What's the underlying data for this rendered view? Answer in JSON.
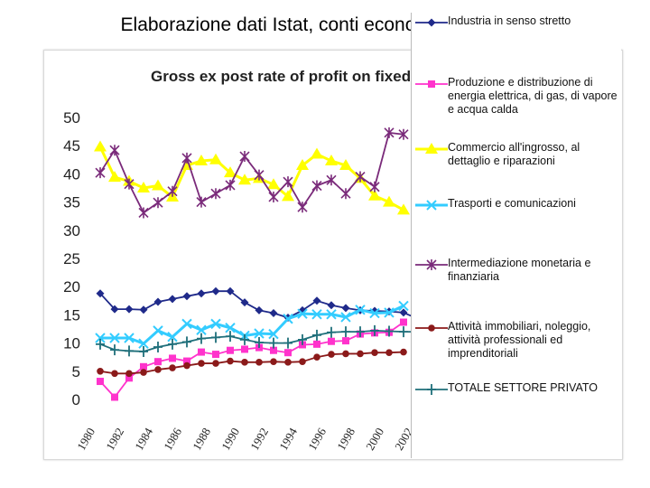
{
  "page": {
    "title": "Elaborazione dati Istat, conti economici nazionali"
  },
  "chart_data": {
    "type": "line",
    "title": "Gross ex post rate of profit on fixed",
    "xlabel": "",
    "ylabel": "",
    "ylim": [
      0,
      50
    ],
    "yticks": [
      0,
      5,
      10,
      15,
      20,
      25,
      30,
      35,
      40,
      45,
      50
    ],
    "xlim": [
      1980,
      2004
    ],
    "xticks": [
      "1980",
      "1982",
      "1984",
      "1986",
      "1988",
      "1990",
      "1992",
      "1994",
      "1996",
      "1998",
      "2000",
      "2002"
    ],
    "x": [
      1980,
      1981,
      1982,
      1983,
      1984,
      1985,
      1986,
      1987,
      1988,
      1989,
      1990,
      1991,
      1992,
      1993,
      1994,
      1995,
      1996,
      1997,
      1998,
      1999,
      2000,
      2001,
      2002,
      2003,
      2004
    ],
    "series": [
      {
        "name": "Industria in senso stretto",
        "color": "#1f2a8a",
        "marker": "diamond",
        "values": [
          18.8,
          16.0,
          16.0,
          15.9,
          17.3,
          17.8,
          18.3,
          18.8,
          19.2,
          19.2,
          17.2,
          15.8,
          15.3,
          14.5,
          15.8,
          17.5,
          16.7,
          16.2,
          15.8,
          15.7,
          15.6,
          15.4,
          14.3,
          13.8,
          null
        ]
      },
      {
        "name": "Produzione e distribuzione di energia elettrica, di gas, di vapore e acqua calda",
        "color": "#ff33cc",
        "marker": "square",
        "values": [
          3.2,
          0.4,
          3.8,
          5.8,
          6.7,
          7.3,
          6.8,
          8.4,
          8.0,
          8.7,
          8.9,
          9.2,
          8.7,
          8.3,
          9.7,
          9.8,
          10.3,
          10.4,
          11.6,
          11.8,
          11.9,
          13.7,
          null,
          null,
          null
        ]
      },
      {
        "name": "Commercio all'ingrosso, al dettaglio e riparazioni",
        "color": "#ffff00",
        "marker": "triangle",
        "values": [
          44.8,
          39.4,
          38.7,
          37.5,
          37.9,
          35.9,
          41.5,
          42.3,
          42.5,
          40.2,
          38.9,
          39.2,
          38.1,
          36.0,
          41.5,
          43.5,
          42.3,
          41.5,
          39.2,
          36.1,
          35.0,
          33.6,
          null,
          null,
          null
        ]
      },
      {
        "name": "Trasporti e comunicazioni",
        "color": "#33ccff",
        "marker": "x",
        "values": [
          10.9,
          10.9,
          10.9,
          9.9,
          12.2,
          11.1,
          13.4,
          12.3,
          13.4,
          12.7,
          11.3,
          11.7,
          11.6,
          14.3,
          15.2,
          15.1,
          15.1,
          14.6,
          15.9,
          15.3,
          15.4,
          16.6,
          null,
          null,
          null
        ]
      },
      {
        "name": "Intermediazione monetaria e finanziaria",
        "color": "#7a2a7a",
        "marker": "star",
        "values": [
          40.2,
          44.2,
          38.2,
          33.1,
          34.9,
          36.9,
          42.8,
          35.0,
          36.5,
          38.0,
          43.1,
          39.8,
          35.9,
          38.6,
          34.1,
          37.9,
          38.9,
          36.5,
          39.5,
          37.7,
          47.3,
          47.0,
          null,
          null,
          null
        ]
      },
      {
        "name": "Attività immobiliari, noleggio, attività professionali ed imprenditoriali",
        "color": "#8b1a1a",
        "marker": "circle",
        "values": [
          5.0,
          4.6,
          4.6,
          4.8,
          5.3,
          5.6,
          6.0,
          6.4,
          6.4,
          6.8,
          6.6,
          6.6,
          6.7,
          6.6,
          6.7,
          7.5,
          8.0,
          8.1,
          8.1,
          8.3,
          8.3,
          8.4,
          null,
          null,
          null
        ]
      },
      {
        "name": "TOTALE SETTORE PRIVATO",
        "color": "#1f6f7a",
        "marker": "plus",
        "values": [
          9.8,
          8.8,
          8.6,
          8.5,
          9.3,
          9.8,
          10.2,
          10.8,
          11.0,
          11.2,
          10.6,
          10.1,
          10.0,
          10.0,
          10.6,
          11.4,
          11.9,
          12.0,
          12.0,
          12.2,
          12.1,
          12.0,
          12.0,
          11.8,
          11.7
        ]
      }
    ]
  }
}
